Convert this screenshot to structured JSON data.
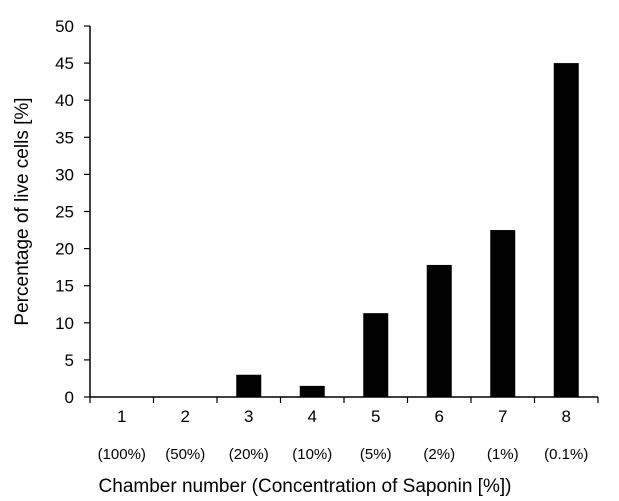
{
  "chart_data": {
    "type": "bar",
    "categories": [
      "1",
      "2",
      "3",
      "4",
      "5",
      "6",
      "7",
      "8"
    ],
    "sub_labels": [
      "(100%)",
      "(50%)",
      "(20%)",
      "(10%)",
      "(5%)",
      "(2%)",
      "(1%)",
      "(0.1%)"
    ],
    "values": [
      0,
      0,
      3,
      1.5,
      11.3,
      17.8,
      22.5,
      45
    ],
    "title": "",
    "xlabel": "Chamber number (Concentration of Saponin [%])",
    "ylabel": "Percentage of live cells [%]",
    "ylim": [
      0,
      50
    ],
    "yticks": [
      0,
      5,
      10,
      15,
      20,
      25,
      30,
      35,
      40,
      45,
      50
    ],
    "bar_color": "#000000",
    "grid": false,
    "legend": "none"
  }
}
